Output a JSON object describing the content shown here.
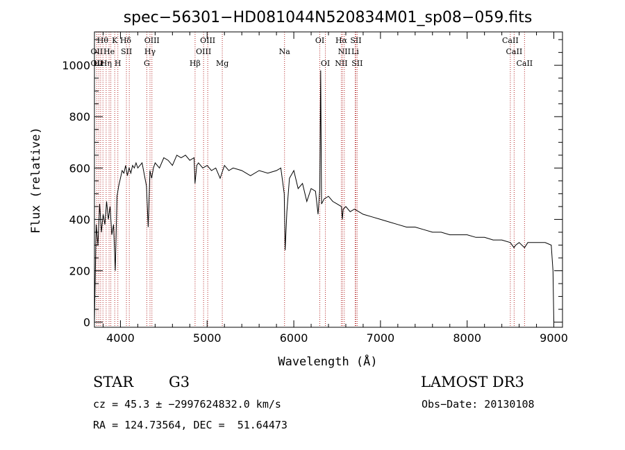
{
  "chart_data": {
    "type": "line",
    "title": "spec−56301−HD081044N520834M01_sp08−059.fits",
    "xlabel": "Wavelength (Å)",
    "ylabel": "Flux (relative)",
    "xlim": [
      3700,
      9100
    ],
    "ylim": [
      -20,
      1130
    ],
    "xticks": [
      4000,
      5000,
      6000,
      7000,
      8000,
      9000
    ],
    "yticks": [
      0,
      200,
      400,
      600,
      800,
      1000
    ],
    "grid": false,
    "series": [
      {
        "x": [
          3700,
          3720,
          3740,
          3760,
          3780,
          3800,
          3820,
          3840,
          3860,
          3880,
          3900,
          3920,
          3940,
          3960,
          3980,
          4000,
          4020,
          4040,
          4060,
          4080,
          4100,
          4120,
          4140,
          4160,
          4180,
          4200,
          4250,
          4300,
          4320,
          4340,
          4360,
          4380,
          4400,
          4450,
          4500,
          4550,
          4600,
          4650,
          4700,
          4750,
          4800,
          4850,
          4860,
          4880,
          4900,
          4950,
          5000,
          5050,
          5100,
          5150,
          5200,
          5250,
          5300,
          5400,
          5500,
          5600,
          5700,
          5800,
          5850,
          5890,
          5900,
          5920,
          5950,
          6000,
          6050,
          6100,
          6150,
          6200,
          6250,
          6280,
          6300,
          6310,
          6320,
          6350,
          6400,
          6450,
          6500,
          6550,
          6560,
          6570,
          6600,
          6650,
          6700,
          6750,
          6800,
          6900,
          7000,
          7100,
          7200,
          7300,
          7400,
          7500,
          7600,
          7700,
          7800,
          7900,
          8000,
          8100,
          8200,
          8300,
          8400,
          8498,
          8540,
          8560,
          8600,
          8662,
          8700,
          8800,
          8900,
          8970,
          8990,
          9000
        ],
        "values": [
          0,
          380,
          300,
          460,
          350,
          420,
          380,
          470,
          400,
          450,
          340,
          380,
          200,
          490,
          530,
          560,
          590,
          580,
          610,
          570,
          600,
          580,
          610,
          600,
          620,
          600,
          620,
          530,
          370,
          590,
          560,
          600,
          620,
          600,
          640,
          630,
          610,
          650,
          640,
          650,
          630,
          640,
          540,
          610,
          620,
          600,
          610,
          590,
          600,
          560,
          610,
          590,
          600,
          590,
          570,
          590,
          580,
          590,
          600,
          500,
          280,
          430,
          560,
          590,
          520,
          540,
          470,
          520,
          510,
          420,
          520,
          980,
          460,
          480,
          490,
          470,
          460,
          450,
          400,
          440,
          450,
          430,
          440,
          430,
          420,
          410,
          400,
          390,
          380,
          370,
          370,
          360,
          350,
          350,
          340,
          340,
          340,
          330,
          330,
          320,
          320,
          310,
          290,
          300,
          310,
          290,
          310,
          310,
          310,
          300,
          200,
          0
        ],
        "color": "#000000"
      }
    ],
    "lines": [
      {
        "x": 3727,
        "color": "#b22222"
      },
      {
        "x": 3750,
        "color": "#b22222"
      },
      {
        "x": 3771,
        "color": "#b22222"
      },
      {
        "x": 3798,
        "color": "#b22222"
      },
      {
        "x": 3835,
        "color": "#b22222"
      },
      {
        "x": 3869,
        "color": "#b22222"
      },
      {
        "x": 3889,
        "color": "#b22222"
      },
      {
        "x": 3934,
        "color": "#b22222"
      },
      {
        "x": 3970,
        "color": "#b22222"
      },
      {
        "x": 4069,
        "color": "#b22222"
      },
      {
        "x": 4102,
        "color": "#b22222"
      },
      {
        "x": 4304,
        "color": "#b22222"
      },
      {
        "x": 4341,
        "color": "#b22222"
      },
      {
        "x": 4363,
        "color": "#b22222"
      },
      {
        "x": 4861,
        "color": "#b22222"
      },
      {
        "x": 4959,
        "color": "#b22222"
      },
      {
        "x": 5007,
        "color": "#b22222"
      },
      {
        "x": 5175,
        "color": "#b22222"
      },
      {
        "x": 5893,
        "color": "#b22222"
      },
      {
        "x": 6300,
        "color": "#b22222"
      },
      {
        "x": 6364,
        "color": "#b22222"
      },
      {
        "x": 6548,
        "color": "#b22222"
      },
      {
        "x": 6563,
        "color": "#b22222"
      },
      {
        "x": 6583,
        "color": "#b22222"
      },
      {
        "x": 6708,
        "color": "#b22222"
      },
      {
        "x": 6716,
        "color": "#b22222"
      },
      {
        "x": 6731,
        "color": "#b22222"
      },
      {
        "x": 8498,
        "color": "#b22222"
      },
      {
        "x": 8542,
        "color": "#b22222"
      },
      {
        "x": 8662,
        "color": "#b22222"
      }
    ],
    "line_labels": [
      {
        "text": "Hθ",
        "x": 3795,
        "row": 0
      },
      {
        "text": "K",
        "x": 3934,
        "row": 0
      },
      {
        "text": "Hδ",
        "x": 4060,
        "row": 0
      },
      {
        "text": "OIII",
        "x": 4363,
        "row": 0
      },
      {
        "text": "OIII",
        "x": 5007,
        "row": 0
      },
      {
        "text": "OI",
        "x": 6300,
        "row": 0
      },
      {
        "text": "Hα",
        "x": 6548,
        "row": 0
      },
      {
        "text": "SII",
        "x": 6716,
        "row": 0
      },
      {
        "text": "CaII",
        "x": 8498,
        "row": 0
      },
      {
        "text": "OII",
        "x": 3727,
        "row": 1
      },
      {
        "text": "He",
        "x": 3869,
        "row": 1
      },
      {
        "text": "SII",
        "x": 4069,
        "row": 1
      },
      {
        "text": "Hγ",
        "x": 4341,
        "row": 1
      },
      {
        "text": "OIII",
        "x": 4959,
        "row": 1
      },
      {
        "text": "Na",
        "x": 5893,
        "row": 1
      },
      {
        "text": "NII",
        "x": 6583,
        "row": 1
      },
      {
        "text": "Li",
        "x": 6708,
        "row": 1
      },
      {
        "text": "CaII",
        "x": 8542,
        "row": 1
      },
      {
        "text": "OII",
        "x": 3727,
        "row": 2
      },
      {
        "text": "Hε",
        "x": 3750,
        "row": 2
      },
      {
        "text": "Hη",
        "x": 3835,
        "row": 2
      },
      {
        "text": "H",
        "x": 3970,
        "row": 2
      },
      {
        "text": "G",
        "x": 4304,
        "row": 2
      },
      {
        "text": "Hβ",
        "x": 4861,
        "row": 2
      },
      {
        "text": "Mg",
        "x": 5175,
        "row": 2
      },
      {
        "text": "OI",
        "x": 6364,
        "row": 2
      },
      {
        "text": "NII",
        "x": 6548,
        "row": 2
      },
      {
        "text": "SII",
        "x": 6731,
        "row": 2
      },
      {
        "text": "CaII",
        "x": 8662,
        "row": 2
      }
    ]
  },
  "info": {
    "class_label": "STAR",
    "subclass_label": "G3",
    "survey_label": "LAMOST DR3",
    "redshift_line": "cz = 45.3 ± −2997624832.0 km/s",
    "obs_date_line": "Obs−Date: 20130108",
    "coords_line": "RA = 124.73564, DEC =  51.64473"
  }
}
